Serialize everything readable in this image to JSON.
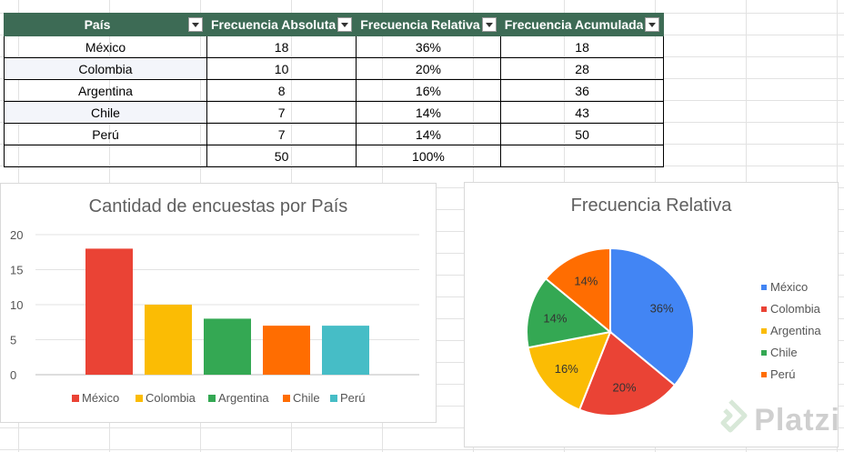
{
  "table": {
    "headers": [
      "País",
      "Frecuencia Absoluta",
      "Frecuencia Relativa",
      "Frecuencia Acumulada"
    ],
    "rows": [
      [
        "México",
        "18",
        "36%",
        "18"
      ],
      [
        "Colombia",
        "10",
        "20%",
        "28"
      ],
      [
        "Argentina",
        "8",
        "16%",
        "36"
      ],
      [
        "Chile",
        "7",
        "14%",
        "43"
      ],
      [
        "Perú",
        "7",
        "14%",
        "50"
      ],
      [
        "",
        "50",
        "100%",
        ""
      ]
    ],
    "header_color": "#3d6b55"
  },
  "bar_chart": {
    "title": "Cantidad de encuestas por País"
  },
  "pie_chart": {
    "title": "Frecuencia Relativa"
  },
  "watermark": {
    "text": "Platzi",
    "icon": "platzi-logo-icon"
  },
  "chart_data": [
    {
      "type": "bar",
      "title": "Cantidad de encuestas por País",
      "categories": [
        "México",
        "Colombia",
        "Argentina",
        "Chile",
        "Perú"
      ],
      "values": [
        18,
        10,
        8,
        7,
        7
      ],
      "colors": [
        "#ea4335",
        "#fbbc04",
        "#34a853",
        "#ff6d01",
        "#46bdc6"
      ],
      "yticks": [
        0,
        5,
        10,
        15,
        20
      ],
      "ylim": [
        0,
        20
      ],
      "grid": true,
      "legend": "bottom"
    },
    {
      "type": "pie",
      "title": "Frecuencia Relativa",
      "categories": [
        "México",
        "Colombia",
        "Argentina",
        "Chile",
        "Perú"
      ],
      "values": [
        36,
        20,
        16,
        14,
        14
      ],
      "labels": [
        "36%",
        "20%",
        "16%",
        "14%",
        "14%"
      ],
      "colors": [
        "#4285f4",
        "#ea4335",
        "#fbbc04",
        "#34a853",
        "#ff6d01"
      ],
      "legend": "right"
    }
  ]
}
